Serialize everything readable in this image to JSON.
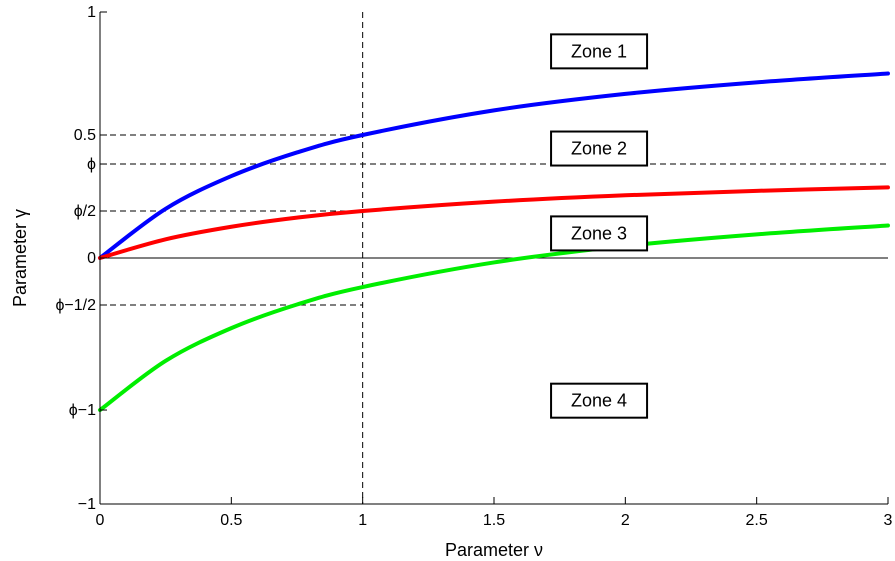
{
  "chart_data": {
    "type": "line",
    "xlabel": "Parameter  ν",
    "ylabel": "Parameter  γ",
    "xlim": [
      0,
      3
    ],
    "ylim": [
      -1,
      1
    ],
    "phi": 0.382,
    "x_ticks": [
      {
        "value": 0,
        "label": "0"
      },
      {
        "value": 0.5,
        "label": "0.5"
      },
      {
        "value": 1,
        "label": "1"
      },
      {
        "value": 1.5,
        "label": "1.5"
      },
      {
        "value": 2,
        "label": "2"
      },
      {
        "value": 2.5,
        "label": "2.5"
      },
      {
        "value": 3,
        "label": "3"
      }
    ],
    "y_ticks": [
      {
        "value": 1,
        "label": "1"
      },
      {
        "value": 0.5,
        "label": "0.5"
      },
      {
        "value": 0.382,
        "label": "ϕ"
      },
      {
        "value": 0.191,
        "label": "ϕ/2"
      },
      {
        "value": 0,
        "label": "0"
      },
      {
        "value": -0.191,
        "label": "ϕ−1/2"
      },
      {
        "value": -0.618,
        "label": "ϕ−1"
      },
      {
        "value": -1,
        "label": "−1"
      }
    ],
    "reference_lines": {
      "horizontal": [
        0.5,
        0.382,
        0.191,
        -0.191
      ],
      "vertical": [
        1
      ],
      "zero_line": 0
    },
    "series": [
      {
        "color": "#0000ff",
        "x": [
          0,
          0.25,
          0.5,
          0.75,
          1,
          1.5,
          2,
          2.5,
          3
        ],
        "y": [
          0,
          0.2,
          0.333,
          0.429,
          0.5,
          0.6,
          0.667,
          0.714,
          0.75
        ]
      },
      {
        "color": "#ff0000",
        "x": [
          0,
          0.25,
          0.5,
          0.75,
          1,
          1.5,
          2,
          2.5,
          3
        ],
        "y": [
          0,
          0.076,
          0.127,
          0.164,
          0.191,
          0.229,
          0.255,
          0.273,
          0.287
        ]
      },
      {
        "color": "#00ee00",
        "x": [
          0,
          0.25,
          0.5,
          0.75,
          1,
          1.5,
          2,
          2.5,
          3
        ],
        "y": [
          -0.618,
          -0.418,
          -0.285,
          -0.189,
          -0.118,
          -0.018,
          0.049,
          0.096,
          0.132
        ]
      }
    ],
    "zones": [
      {
        "label": "Zone 1",
        "x": 1.9,
        "y": 0.84
      },
      {
        "label": "Zone 2",
        "x": 1.9,
        "y": 0.445
      },
      {
        "label": "Zone 3",
        "x": 1.9,
        "y": 0.1
      },
      {
        "label": "Zone 4",
        "x": 1.9,
        "y": -0.58
      }
    ]
  }
}
